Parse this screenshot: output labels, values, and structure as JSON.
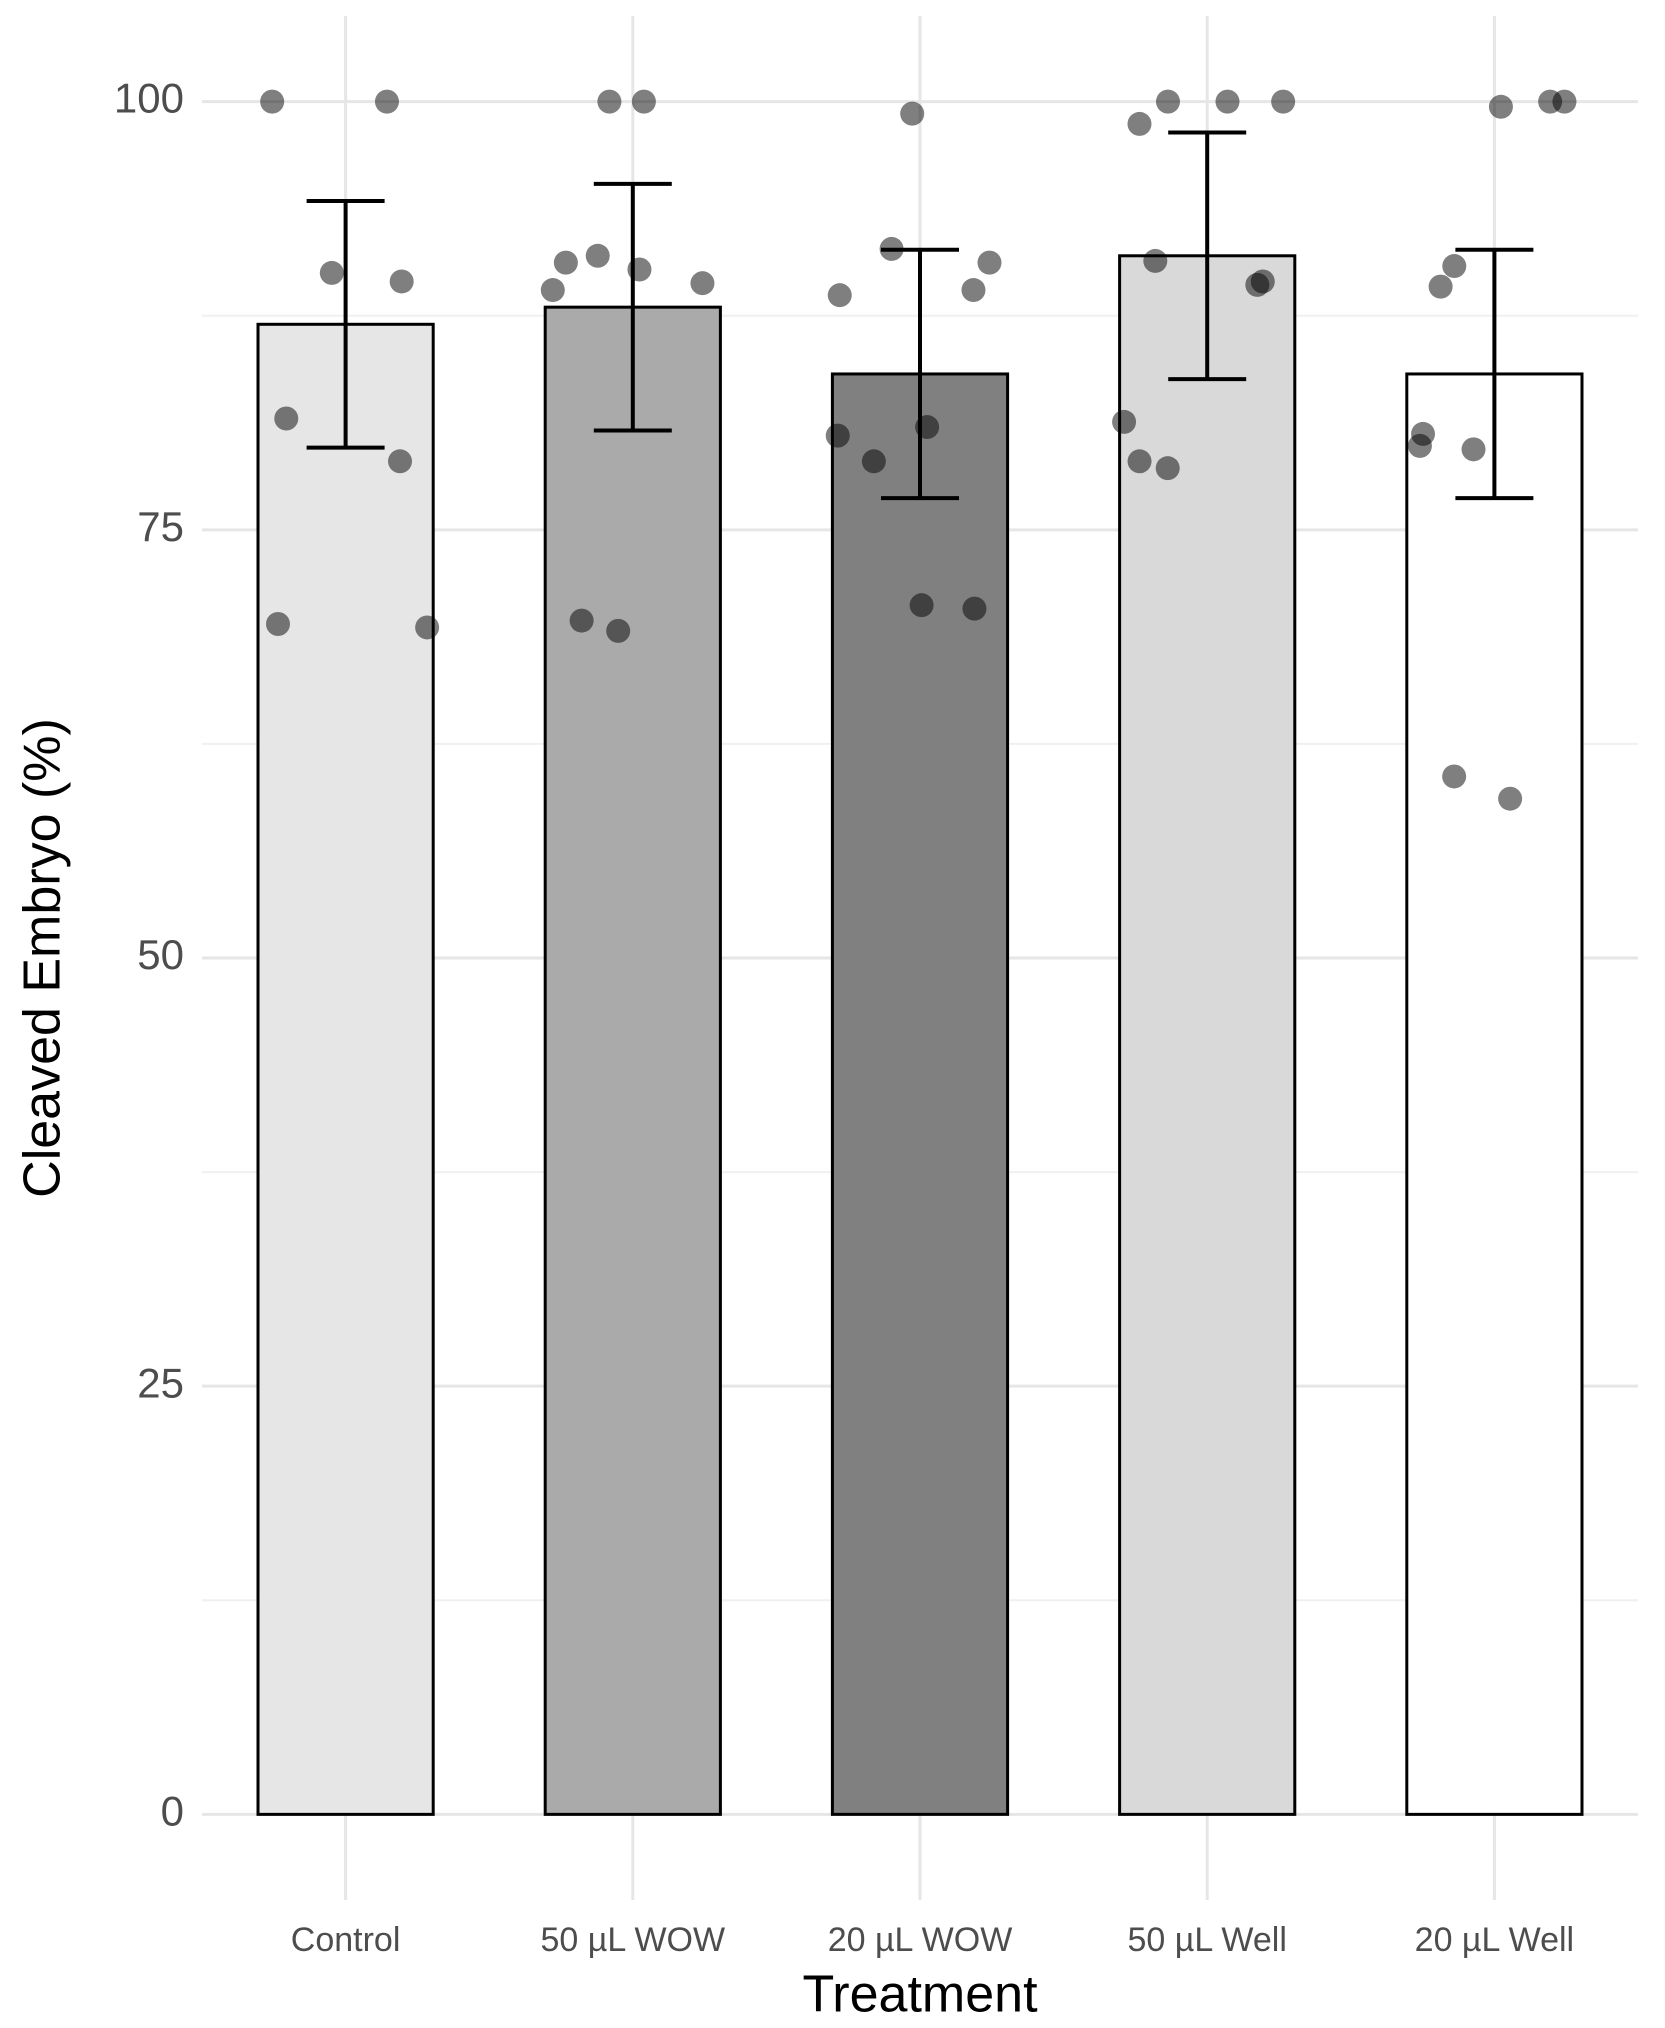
{
  "chart_data": {
    "type": "bar",
    "x_label": "Treatment",
    "y_label": "Cleaved Embryo (%)",
    "categories": [
      "Control",
      "50 µL WOW",
      "20 µL WOW",
      "50 µL Well",
      "20 µL Well"
    ],
    "values": [
      87.0,
      88.0,
      84.1,
      91.0,
      84.1
    ],
    "errors": [
      7.2,
      7.2,
      7.25,
      7.2,
      7.25
    ],
    "colors": [
      "#e6e6e6",
      "#aaaaaa",
      "#808080",
      "#d9d9d9",
      "#ffffff"
    ],
    "points": [
      [
        100,
        100,
        90,
        89.5,
        81.5,
        79,
        69.5,
        69.3
      ],
      [
        100,
        100,
        91.0,
        90.2,
        90.6,
        89.0,
        89.4,
        69.7,
        69.1
      ],
      [
        99.3,
        91.4,
        90.6,
        88.7,
        89.0,
        80.5,
        81.0,
        79.0,
        70.6,
        70.4
      ],
      [
        100,
        100,
        100,
        98.7,
        90.7,
        89.5,
        89.3,
        81.3,
        79.0,
        78.6
      ],
      [
        100,
        99.7,
        100,
        90.4,
        89.2,
        80.6,
        79.7,
        79.9,
        59.3,
        60.6
      ]
    ],
    "ylim": [
      -5,
      105
    ],
    "yticks": [
      0,
      25,
      50,
      75,
      100
    ],
    "grid": true
  }
}
